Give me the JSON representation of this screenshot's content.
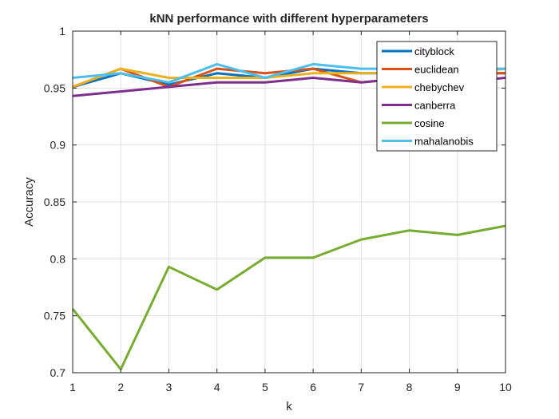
{
  "chart_data": {
    "type": "line",
    "title": "kNN performance with different hyperparameters",
    "xlabel": "k",
    "ylabel": "Accuracy",
    "x": [
      1,
      2,
      3,
      4,
      5,
      6,
      7,
      8,
      9,
      10
    ],
    "xlim": [
      1,
      10
    ],
    "ylim": [
      0.7,
      1
    ],
    "xticks": [
      1,
      2,
      3,
      4,
      5,
      6,
      7,
      8,
      9,
      10
    ],
    "yticks": [
      0.7,
      0.75,
      0.8,
      0.85,
      0.9,
      0.95,
      1
    ],
    "ytick_labels": [
      "0.7",
      "0.75",
      "0.8",
      "0.85",
      "0.9",
      "0.95",
      "1"
    ],
    "grid": true,
    "legend_position": "top-right",
    "series": [
      {
        "name": "cityblock",
        "color": "#0072BD",
        "values": [
          0.951,
          0.963,
          0.953,
          0.963,
          0.959,
          0.967,
          0.963,
          0.963,
          0.963,
          0.963
        ]
      },
      {
        "name": "euclidean",
        "color": "#D95319",
        "values": [
          0.951,
          0.967,
          0.951,
          0.967,
          0.963,
          0.967,
          0.955,
          0.959,
          0.963,
          0.963
        ]
      },
      {
        "name": "chebychev",
        "color": "#EDB120",
        "values": [
          0.951,
          0.967,
          0.959,
          0.959,
          0.959,
          0.963,
          0.963,
          0.963,
          0.963,
          0.967
        ]
      },
      {
        "name": "canberra",
        "color": "#7E2F8E",
        "values": [
          0.943,
          0.947,
          0.951,
          0.955,
          0.955,
          0.959,
          0.955,
          0.959,
          0.955,
          0.959
        ]
      },
      {
        "name": "cosine",
        "color": "#77AC30",
        "values": [
          0.756,
          0.703,
          0.793,
          0.773,
          0.801,
          0.801,
          0.817,
          0.825,
          0.821,
          0.829
        ]
      },
      {
        "name": "mahalanobis",
        "color": "#4DBEEE",
        "values": [
          0.959,
          0.963,
          0.955,
          0.971,
          0.959,
          0.971,
          0.967,
          0.967,
          0.967,
          0.967
        ]
      }
    ]
  }
}
